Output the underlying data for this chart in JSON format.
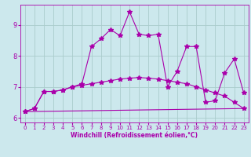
{
  "background_color": "#cce8ed",
  "line_color": "#aa00aa",
  "grid_color": "#aacccc",
  "xlim": [
    -0.5,
    23.5
  ],
  "ylim": [
    5.85,
    9.65
  ],
  "xticks": [
    0,
    1,
    2,
    3,
    4,
    5,
    6,
    7,
    8,
    9,
    10,
    11,
    12,
    13,
    14,
    15,
    16,
    17,
    18,
    19,
    20,
    21,
    22,
    23
  ],
  "yticks": [
    6,
    7,
    8,
    9
  ],
  "xlabel": "Windchill (Refroidissement éolien,°C)",
  "line1_x": [
    0,
    1,
    2,
    3,
    4,
    5,
    6,
    7,
    8,
    9,
    10,
    11,
    12,
    13,
    14,
    15,
    16,
    17,
    18,
    19,
    20,
    21,
    22,
    23
  ],
  "line1_y": [
    6.2,
    6.3,
    6.85,
    6.85,
    6.9,
    7.0,
    7.05,
    7.1,
    7.15,
    7.2,
    7.25,
    7.28,
    7.3,
    7.28,
    7.25,
    7.2,
    7.15,
    7.1,
    7.0,
    6.9,
    6.8,
    6.7,
    6.5,
    6.3
  ],
  "line2_x": [
    0,
    1,
    2,
    3,
    4,
    5,
    6,
    7,
    8,
    9,
    10,
    11,
    12,
    13,
    14,
    15,
    16,
    17,
    18,
    19,
    20,
    21,
    22,
    23
  ],
  "line2_y": [
    6.2,
    6.3,
    6.85,
    6.85,
    6.9,
    7.0,
    7.1,
    8.3,
    8.55,
    8.85,
    8.65,
    9.42,
    8.7,
    8.65,
    8.7,
    7.0,
    7.5,
    8.3,
    8.3,
    6.5,
    6.55,
    7.45,
    7.9,
    6.8
  ],
  "line3_x": [
    0,
    23
  ],
  "line3_y": [
    6.2,
    6.3
  ],
  "marker": "*",
  "marker_size": 4,
  "line_width": 0.8,
  "tick_fontsize_x": 5,
  "tick_fontsize_y": 6,
  "xlabel_fontsize": 5.5
}
